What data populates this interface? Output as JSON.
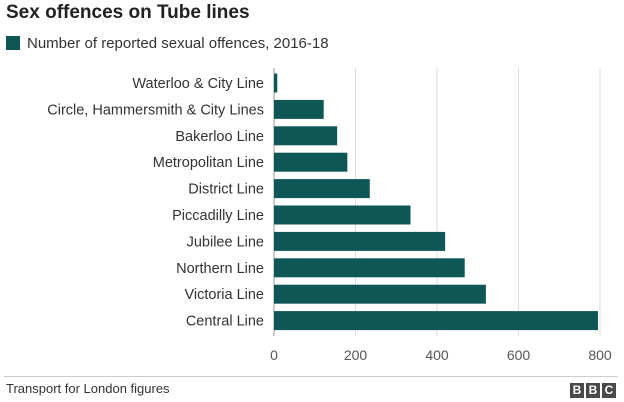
{
  "chart_data": {
    "type": "bar",
    "orientation": "horizontal",
    "title": "Sex offences on Tube lines",
    "series": [
      {
        "name": "Number of reported sexual offences, 2016-18",
        "color": "#0f5756",
        "values": [
          8,
          122,
          155,
          180,
          235,
          335,
          420,
          468,
          520,
          795
        ]
      }
    ],
    "categories": [
      "Waterloo & City Line",
      "Circle, Hammersmith & City Lines",
      "Bakerloo Line",
      "Metropolitan Line",
      "District Line",
      "Piccadilly Line",
      "Jubilee Line",
      "Northern Line",
      "Victoria Line",
      "Central Line"
    ],
    "xlim": [
      0,
      800
    ],
    "xticks": [
      0,
      200,
      400,
      600,
      800
    ],
    "grid": true,
    "legend_position": "top-left"
  },
  "source": "Transport for London figures",
  "brand": {
    "letters": [
      "B",
      "B",
      "C"
    ]
  }
}
